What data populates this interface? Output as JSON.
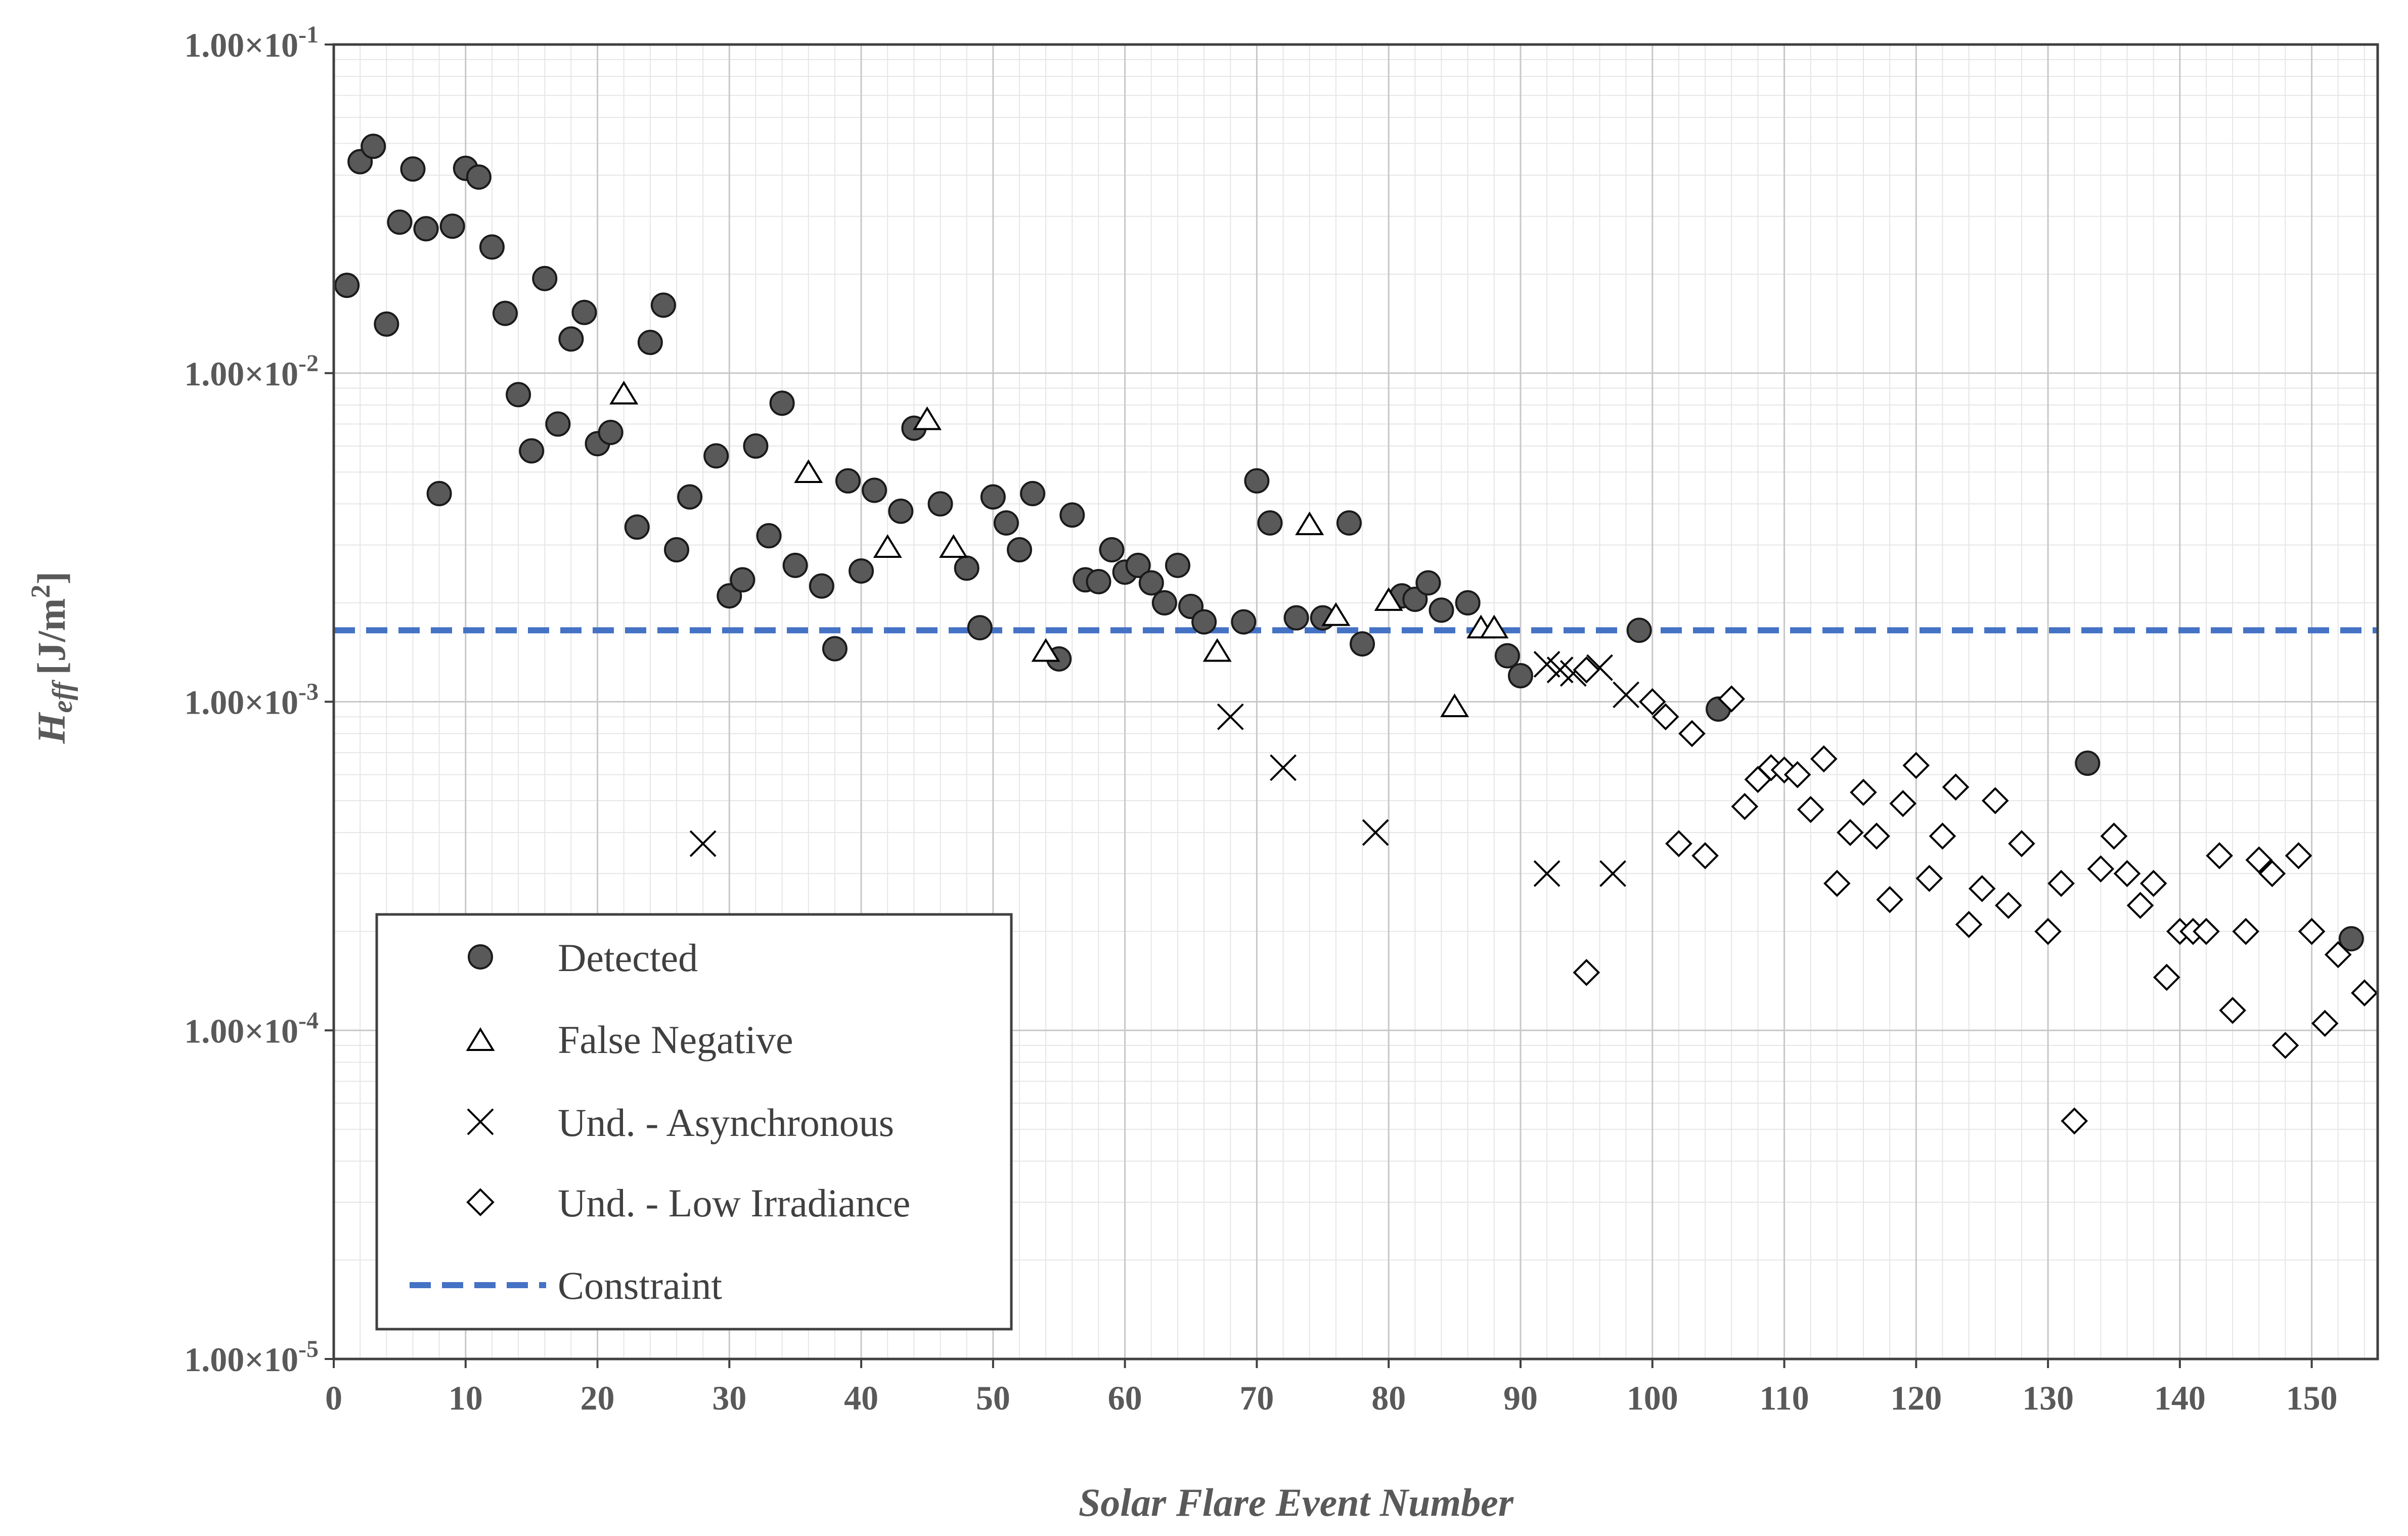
{
  "chart_data": {
    "type": "scatter",
    "title": "",
    "xlabel": "Solar Flare Event Number",
    "ylabel_main": "H",
    "ylabel_sub": "eff",
    "ylabel_unit": "[J/m",
    "ylabel_unit_sup": "2",
    "ylabel_unit_close": "]",
    "yscale": "log",
    "xlim": [
      0,
      155
    ],
    "ylim": [
      1e-05,
      0.1
    ],
    "xticks": [
      0,
      10,
      20,
      30,
      40,
      50,
      60,
      70,
      80,
      90,
      100,
      110,
      120,
      130,
      140,
      150
    ],
    "yticks": [
      {
        "value": 0.1,
        "mantissa": "1.00×10",
        "exp": "-1"
      },
      {
        "value": 0.01,
        "mantissa": "1.00×10",
        "exp": "-2"
      },
      {
        "value": 0.001,
        "mantissa": "1.00×10",
        "exp": "-3"
      },
      {
        "value": 0.0001,
        "mantissa": "1.00×10",
        "exp": "-4"
      },
      {
        "value": 1e-05,
        "mantissa": "1.00×10",
        "exp": "-5"
      }
    ],
    "grid": true,
    "legend_position": "bottom-left",
    "series": [
      {
        "name": "Detected",
        "marker": "filled-circle",
        "color": "#595959",
        "points": [
          [
            1,
            0.0185
          ],
          [
            2,
            0.044
          ],
          [
            3,
            0.049
          ],
          [
            4,
            0.0141
          ],
          [
            5,
            0.0288
          ],
          [
            6,
            0.0418
          ],
          [
            7,
            0.0275
          ],
          [
            8,
            0.0043
          ],
          [
            9,
            0.028
          ],
          [
            10,
            0.042
          ],
          [
            11,
            0.0395
          ],
          [
            12,
            0.0242
          ],
          [
            13,
            0.0152
          ],
          [
            14,
            0.0086
          ],
          [
            15,
            0.0058
          ],
          [
            16,
            0.0194
          ],
          [
            17,
            0.007
          ],
          [
            18,
            0.0127
          ],
          [
            19,
            0.0153
          ],
          [
            20,
            0.0061
          ],
          [
            21,
            0.0066
          ],
          [
            23,
            0.0034
          ],
          [
            24,
            0.0124
          ],
          [
            25,
            0.0161
          ],
          [
            26,
            0.0029
          ],
          [
            27,
            0.0042
          ],
          [
            29,
            0.0056
          ],
          [
            30,
            0.0021
          ],
          [
            31,
            0.00235
          ],
          [
            32,
            0.006
          ],
          [
            33,
            0.0032
          ],
          [
            34,
            0.0081
          ],
          [
            35,
            0.0026
          ],
          [
            37,
            0.00225
          ],
          [
            38,
            0.00145
          ],
          [
            39,
            0.0047
          ],
          [
            40,
            0.0025
          ],
          [
            41,
            0.0044
          ],
          [
            43,
            0.0038
          ],
          [
            44,
            0.0068
          ],
          [
            46,
            0.004
          ],
          [
            48,
            0.00255
          ],
          [
            49,
            0.00168
          ],
          [
            50,
            0.0042
          ],
          [
            51,
            0.0035
          ],
          [
            52,
            0.0029
          ],
          [
            53,
            0.0043
          ],
          [
            55,
            0.00135
          ],
          [
            56,
            0.0037
          ],
          [
            57,
            0.00235
          ],
          [
            58,
            0.00232
          ],
          [
            59,
            0.0029
          ],
          [
            60,
            0.00248
          ],
          [
            61,
            0.0026
          ],
          [
            62,
            0.0023
          ],
          [
            63,
            0.002
          ],
          [
            64,
            0.0026
          ],
          [
            65,
            0.00195
          ],
          [
            66,
            0.00175
          ],
          [
            69,
            0.00175
          ],
          [
            70,
            0.0047
          ],
          [
            71,
            0.0035
          ],
          [
            73,
            0.0018
          ],
          [
            75,
            0.0018
          ],
          [
            77,
            0.0035
          ],
          [
            78,
            0.0015
          ],
          [
            81,
            0.0021
          ],
          [
            82,
            0.00205
          ],
          [
            83,
            0.0023
          ],
          [
            84,
            0.0019
          ],
          [
            86,
            0.002
          ],
          [
            89,
            0.00138
          ],
          [
            90,
            0.0012
          ],
          [
            99,
            0.00165
          ],
          [
            105,
            0.00095
          ],
          [
            133,
            0.00065
          ],
          [
            153,
            0.00019
          ]
        ]
      },
      {
        "name": "False Negative",
        "marker": "open-triangle",
        "color": "#000000",
        "points": [
          [
            22,
            0.0085
          ],
          [
            36,
            0.0049
          ],
          [
            42,
            0.0029
          ],
          [
            45,
            0.0071
          ],
          [
            47,
            0.0029
          ],
          [
            54,
            0.0014
          ],
          [
            67,
            0.0014
          ],
          [
            74,
            0.0034
          ],
          [
            76,
            0.0018
          ],
          [
            80,
            0.002
          ],
          [
            85,
            0.00095
          ],
          [
            87,
            0.00165
          ],
          [
            88,
            0.00165
          ]
        ]
      },
      {
        "name": "Und. - Asynchronous",
        "marker": "x",
        "color": "#000000",
        "points": [
          [
            28,
            0.00037
          ],
          [
            68,
            0.0009
          ],
          [
            72,
            0.00063
          ],
          [
            79,
            0.0004
          ],
          [
            92,
            0.0003
          ],
          [
            92,
            0.0013
          ],
          [
            93,
            0.00125
          ],
          [
            94,
            0.00122
          ],
          [
            96,
            0.00127
          ],
          [
            97,
            0.0003
          ],
          [
            98,
            0.00105
          ]
        ]
      },
      {
        "name": "Und. - Low Irradiance",
        "marker": "open-diamond",
        "color": "#000000",
        "points": [
          [
            95,
            0.00015
          ],
          [
            95,
            0.00125
          ],
          [
            100,
            0.001
          ],
          [
            101,
            0.0009
          ],
          [
            102,
            0.00037
          ],
          [
            103,
            0.0008
          ],
          [
            104,
            0.00034
          ],
          [
            106,
            0.00102
          ],
          [
            107,
            0.00048
          ],
          [
            108,
            0.00058
          ],
          [
            109,
            0.00063
          ],
          [
            110,
            0.00062
          ],
          [
            111,
            0.0006
          ],
          [
            112,
            0.00047
          ],
          [
            113,
            0.00067
          ],
          [
            114,
            0.00028
          ],
          [
            115,
            0.0004
          ],
          [
            116,
            0.00053
          ],
          [
            117,
            0.00039
          ],
          [
            118,
            0.00025
          ],
          [
            119,
            0.00049
          ],
          [
            120,
            0.00064
          ],
          [
            121,
            0.00029
          ],
          [
            122,
            0.00039
          ],
          [
            123,
            0.00055
          ],
          [
            124,
            0.00021
          ],
          [
            125,
            0.00027
          ],
          [
            126,
            0.0005
          ],
          [
            127,
            0.00024
          ],
          [
            128,
            0.00037
          ],
          [
            130,
            0.0002
          ],
          [
            131,
            0.00028
          ],
          [
            132,
            5.3e-05
          ],
          [
            134,
            0.00031
          ],
          [
            135,
            0.00039
          ],
          [
            136,
            0.0003
          ],
          [
            137,
            0.00024
          ],
          [
            138,
            0.00028
          ],
          [
            139,
            0.000145
          ],
          [
            140,
            0.0002
          ],
          [
            141,
            0.0002
          ],
          [
            142,
            0.0002
          ],
          [
            143,
            0.00034
          ],
          [
            144,
            0.000115
          ],
          [
            145,
            0.0002
          ],
          [
            146,
            0.00033
          ],
          [
            147,
            0.0003
          ],
          [
            148,
            9e-05
          ],
          [
            149,
            0.00034
          ],
          [
            150,
            0.0002
          ],
          [
            151,
            0.000105
          ],
          [
            152,
            0.00017
          ],
          [
            154,
            0.00013
          ]
        ]
      }
    ],
    "constraint": {
      "name": "Constraint",
      "value": 0.00165,
      "color": "#4472C4",
      "style": "dashed"
    }
  }
}
